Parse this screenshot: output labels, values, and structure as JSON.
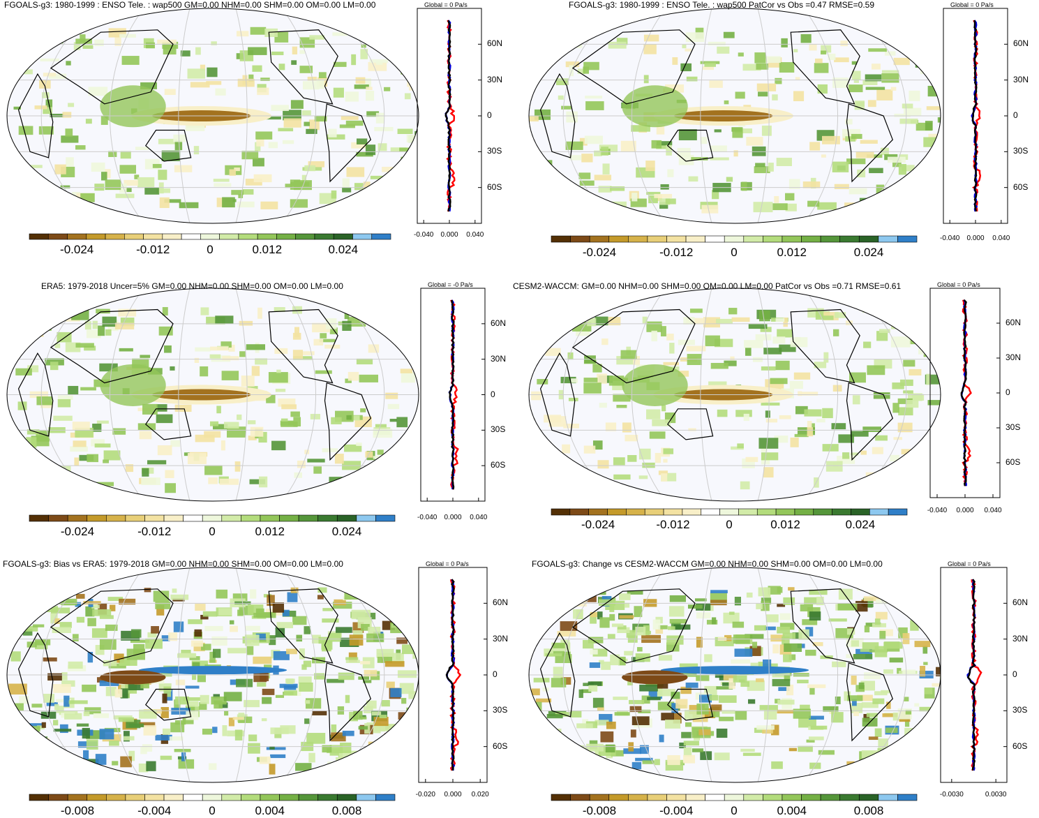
{
  "colors": {
    "ocean": "#f7f8fd",
    "land_line": "#000000",
    "graticule": "#cccccc",
    "line_red": "#ff0000",
    "line_blue": "#0000dd",
    "line_black": "#000000"
  },
  "colorbar_colors": [
    "#543005",
    "#7d4a17",
    "#a3721f",
    "#c49a2a",
    "#d6b24a",
    "#e8cf78",
    "#f3e2a2",
    "#f8efc8",
    "#ffffff",
    "#eef7dc",
    "#d2eba8",
    "#b3dc7c",
    "#93c65a",
    "#74b045",
    "#55963a",
    "#3a7a30",
    "#2a6327",
    "#8dc8ef",
    "#2f7fc8"
  ],
  "chart_data": [
    {
      "type": "heatmap",
      "title": "FGOALS-g3: 1980-1999 : ENSO Tele. : wap500 GM=0.00 NHM=0.00 SHM=0.00 OM=0.00 LM=0.00",
      "colorbar_ticks": [
        "-0.024",
        "-0.012",
        "0",
        "0.012",
        "0.024"
      ],
      "zonal_mean": {
        "header": "Global = 0 Pa/s",
        "x_ticks": [
          "-0.040",
          "0.000",
          "0.040"
        ],
        "xlim": [
          -0.05,
          0.05
        ],
        "lat_ticks": [
          "60N",
          "30N",
          "0",
          "30S",
          "60S"
        ],
        "ylim": [
          -90,
          90
        ]
      }
    },
    {
      "type": "heatmap",
      "title": "FGOALS-g3: 1980-1999 : ENSO Tele. : wap500 PatCor vs Obs =0.47 RMSE=0.59",
      "colorbar_ticks": [
        "-0.024",
        "-0.012",
        "0",
        "0.012",
        "0.024"
      ],
      "zonal_mean": {
        "header": "Global = 0 Pa/s",
        "x_ticks": [
          "-0.040",
          "0.000",
          "0.040"
        ],
        "xlim": [
          -0.05,
          0.05
        ],
        "lat_ticks": [
          "60N",
          "30N",
          "0",
          "30S",
          "60S"
        ],
        "ylim": [
          -90,
          90
        ]
      }
    },
    {
      "type": "heatmap",
      "title": "ERA5: 1979-2018 Uncer=5% GM=0.00 NHM=0.00 SHM=0.00 OM=0.00 LM=0.00",
      "colorbar_ticks": [
        "-0.024",
        "-0.012",
        "0",
        "0.012",
        "0.024"
      ],
      "zonal_mean": {
        "header": "Global = -0 Pa/s",
        "x_ticks": [
          "-0.040",
          "0.000",
          "0.040"
        ],
        "xlim": [
          -0.05,
          0.05
        ],
        "lat_ticks": [
          "60N",
          "30N",
          "0",
          "30S",
          "60S"
        ],
        "ylim": [
          -90,
          90
        ]
      }
    },
    {
      "type": "heatmap",
      "title": "CESM2-WACCM: GM=0.00 NHM=0.00 SHM=0.00 OM=0.00 LM=0.00 PatCor vs Obs =0.71 RMSE=0.61",
      "colorbar_ticks": [
        "-0.024",
        "-0.012",
        "0",
        "0.012",
        "0.024"
      ],
      "zonal_mean": {
        "header": "Global = 0 Pa/s",
        "x_ticks": [
          "-0.040",
          "0.000",
          "0.040"
        ],
        "xlim": [
          -0.05,
          0.05
        ],
        "lat_ticks": [
          "60N",
          "30N",
          "0",
          "30S",
          "60S"
        ],
        "ylim": [
          -90,
          90
        ]
      }
    },
    {
      "type": "heatmap",
      "title": "FGOALS-g3: Bias vs ERA5: 1979-2018 GM=0.00 NHM=0.00 SHM=0.00 OM=0.00 LM=0.00",
      "colorbar_ticks": [
        "-0.008",
        "-0.004",
        "0",
        "0.004",
        "0.008"
      ],
      "zonal_mean": {
        "header": "Global = 0 Pa/s",
        "x_ticks": [
          "-0.020",
          "0.000",
          "0.020"
        ],
        "xlim": [
          -0.025,
          0.025
        ],
        "lat_ticks": [
          "60N",
          "30N",
          "0",
          "30S",
          "60S"
        ],
        "ylim": [
          -90,
          90
        ]
      }
    },
    {
      "type": "heatmap",
      "title": "FGOALS-g3: Change vs CESM2-WACCM GM=0.00 NHM=0.00 SHM=0.00 OM=0.00 LM=0.00",
      "colorbar_ticks": [
        "-0.008",
        "-0.004",
        "0",
        "0.004",
        "0.008"
      ],
      "zonal_mean": {
        "header": "Global = 0 Pa/s",
        "x_ticks": [
          "-0.0030",
          "0.0030"
        ],
        "xlim": [
          -0.0045,
          0.0045
        ],
        "lat_ticks": [
          "60N",
          "30N",
          "0",
          "30S",
          "60S"
        ],
        "ylim": [
          -90,
          90
        ]
      }
    }
  ]
}
